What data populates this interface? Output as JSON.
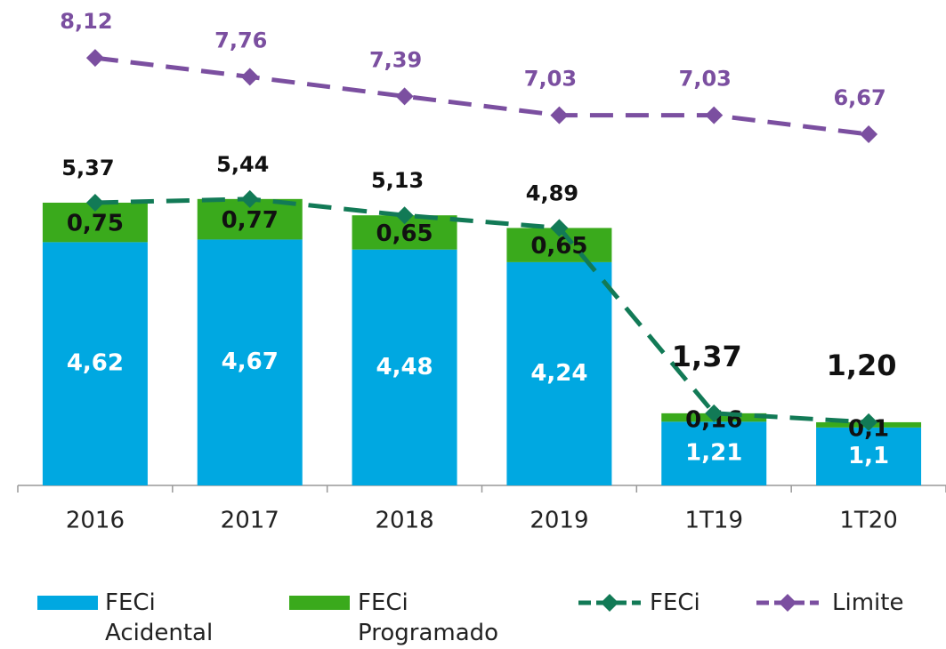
{
  "chart_data": {
    "type": "bar",
    "stacked": true,
    "categories": [
      "2016",
      "2017",
      "2018",
      "2019",
      "1T19",
      "1T20"
    ],
    "ylim": [
      0,
      9
    ],
    "series": [
      {
        "name": "FECi Acidental",
        "type": "bar",
        "color": "#00a8e1",
        "values": [
          4.62,
          4.67,
          4.48,
          4.24,
          1.21,
          1.1
        ],
        "value_labels": [
          "4,62",
          "4,67",
          "4,48",
          "4,24",
          "1,21",
          "1,1"
        ]
      },
      {
        "name": "FECi Programado",
        "type": "bar",
        "color": "#3aaa1c",
        "values": [
          0.75,
          0.77,
          0.65,
          0.65,
          0.16,
          0.1
        ],
        "value_labels": [
          "0,75",
          "0,77",
          "0,65",
          "0,65",
          "0,16",
          "0,1"
        ]
      },
      {
        "name": "FECi",
        "type": "line",
        "color": "#127a56",
        "values": [
          5.37,
          5.44,
          5.13,
          4.89,
          1.37,
          1.2
        ],
        "value_labels": [
          "5,37",
          "5,44",
          "5,13",
          "4,89",
          "1,37",
          "1,20"
        ]
      },
      {
        "name": "Limite",
        "type": "line",
        "color": "#7b4fa0",
        "values": [
          8.12,
          7.76,
          7.39,
          7.03,
          7.03,
          6.67
        ],
        "value_labels": [
          "8,12",
          "7,76",
          "7,39",
          "7,03",
          "7,03",
          "6,67"
        ]
      }
    ]
  }
}
